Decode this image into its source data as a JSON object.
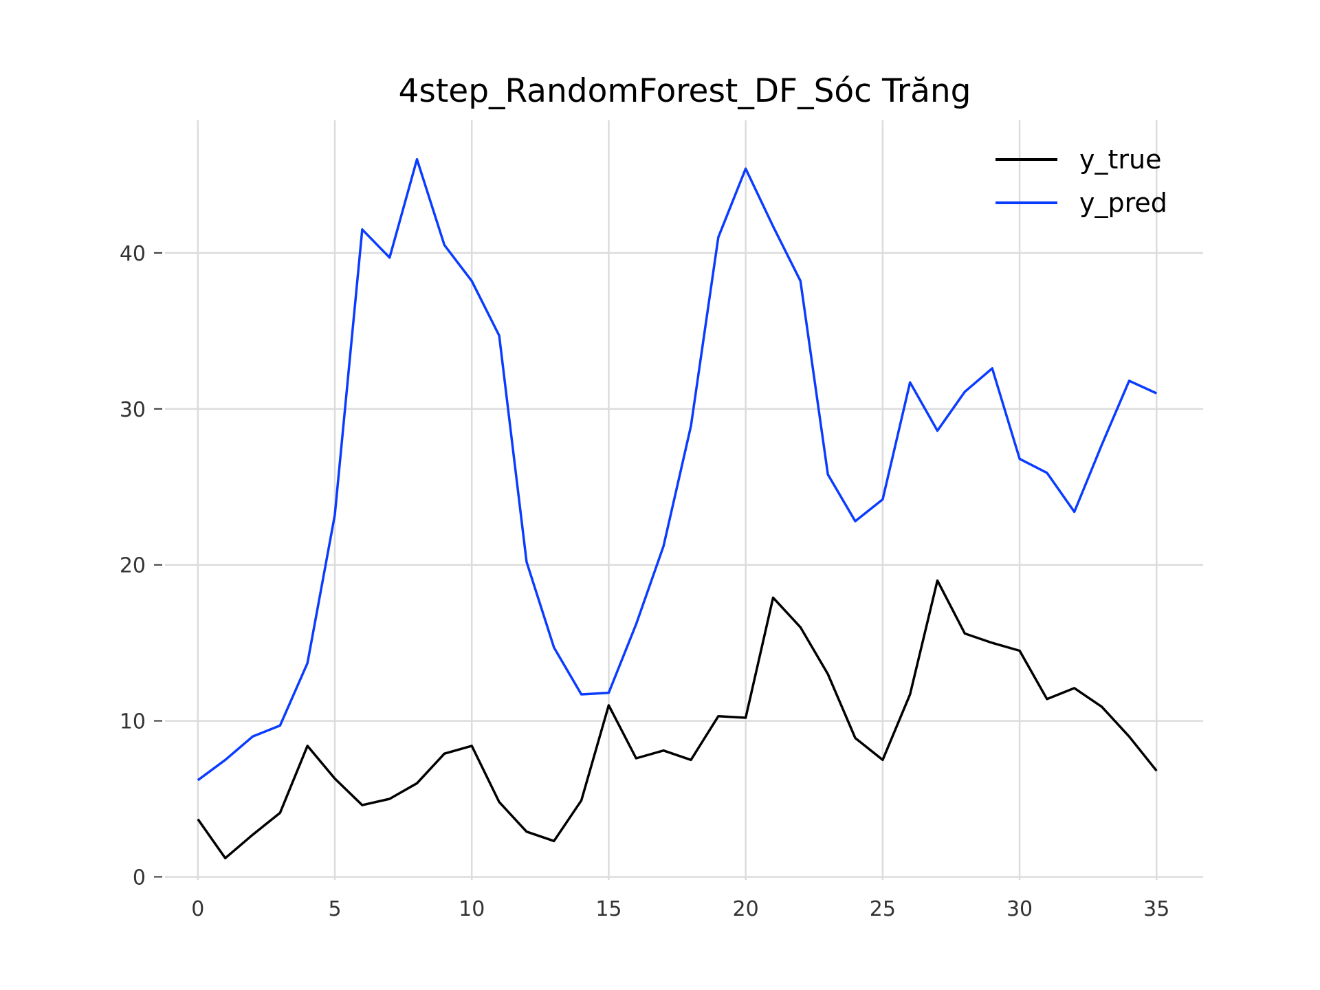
{
  "chart_data": {
    "type": "line",
    "title": "4step_RandomForest_DF_Sóc Trăng",
    "xlabel": "",
    "ylabel": "",
    "xlim": [
      -1.2,
      36.7
    ],
    "ylim": [
      -0.2,
      48.5
    ],
    "xticks": [
      0,
      5,
      10,
      15,
      20,
      25,
      30,
      35
    ],
    "xtick_labels": [
      "0",
      "5",
      "10",
      "15",
      "20",
      "25",
      "30",
      "35"
    ],
    "yticks": [
      0,
      10,
      20,
      30,
      40
    ],
    "ytick_labels": [
      "0",
      "10",
      "20",
      "30",
      "40"
    ],
    "grid": true,
    "legend_position": "top-right",
    "x": [
      0,
      1,
      2,
      3,
      4,
      5,
      6,
      7,
      8,
      9,
      10,
      11,
      12,
      13,
      14,
      15,
      16,
      17,
      18,
      19,
      20,
      21,
      22,
      23,
      24,
      25,
      26,
      27,
      28,
      29,
      30,
      31,
      32,
      33,
      34,
      35
    ],
    "series": [
      {
        "name": "y_true",
        "color": "#000000",
        "values": [
          3.7,
          1.2,
          2.7,
          4.1,
          8.4,
          6.3,
          4.6,
          5.0,
          6.0,
          7.9,
          8.4,
          4.8,
          2.9,
          2.3,
          4.9,
          11.0,
          7.6,
          8.1,
          7.5,
          10.3,
          10.2,
          17.9,
          16.0,
          13.0,
          8.9,
          7.5,
          11.7,
          19.0,
          15.6,
          15.0,
          14.5,
          11.4,
          12.1,
          10.9,
          9.0,
          6.8
        ]
      },
      {
        "name": "y_pred",
        "color": "#0a3cff",
        "values": [
          6.2,
          7.5,
          9.0,
          9.7,
          13.7,
          23.2,
          41.5,
          39.7,
          46.0,
          40.5,
          38.2,
          34.7,
          20.2,
          14.7,
          11.7,
          11.8,
          16.2,
          21.2,
          28.9,
          41.0,
          45.4,
          41.7,
          38.2,
          25.8,
          22.8,
          24.2,
          31.7,
          28.6,
          31.1,
          32.6,
          26.8,
          25.9,
          23.4,
          27.7,
          31.8,
          31.0
        ]
      }
    ]
  }
}
